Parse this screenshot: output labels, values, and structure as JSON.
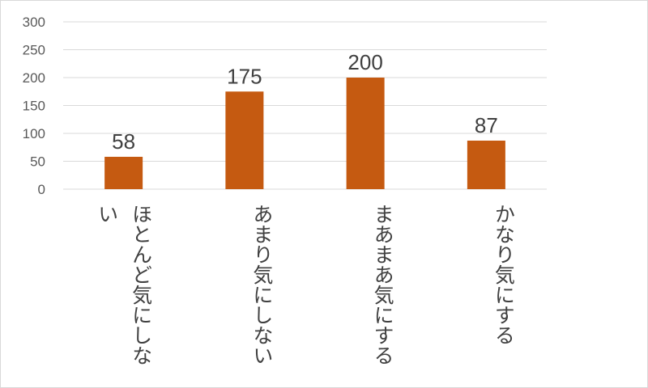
{
  "chart_data": {
    "type": "bar",
    "categories": [
      "ほとんど気にしない",
      "あまり気にしない",
      "まあまあ気にする",
      "かなり気にする"
    ],
    "values": [
      58,
      175,
      200,
      87
    ],
    "ylim": [
      0,
      300
    ],
    "yticks": [
      0,
      50,
      100,
      150,
      200,
      250,
      300
    ],
    "grid": true,
    "legend": "none",
    "bar_color": "#c55a11",
    "grid_color": "#d9d9d9",
    "title": "",
    "xlabel": "",
    "ylabel": ""
  }
}
